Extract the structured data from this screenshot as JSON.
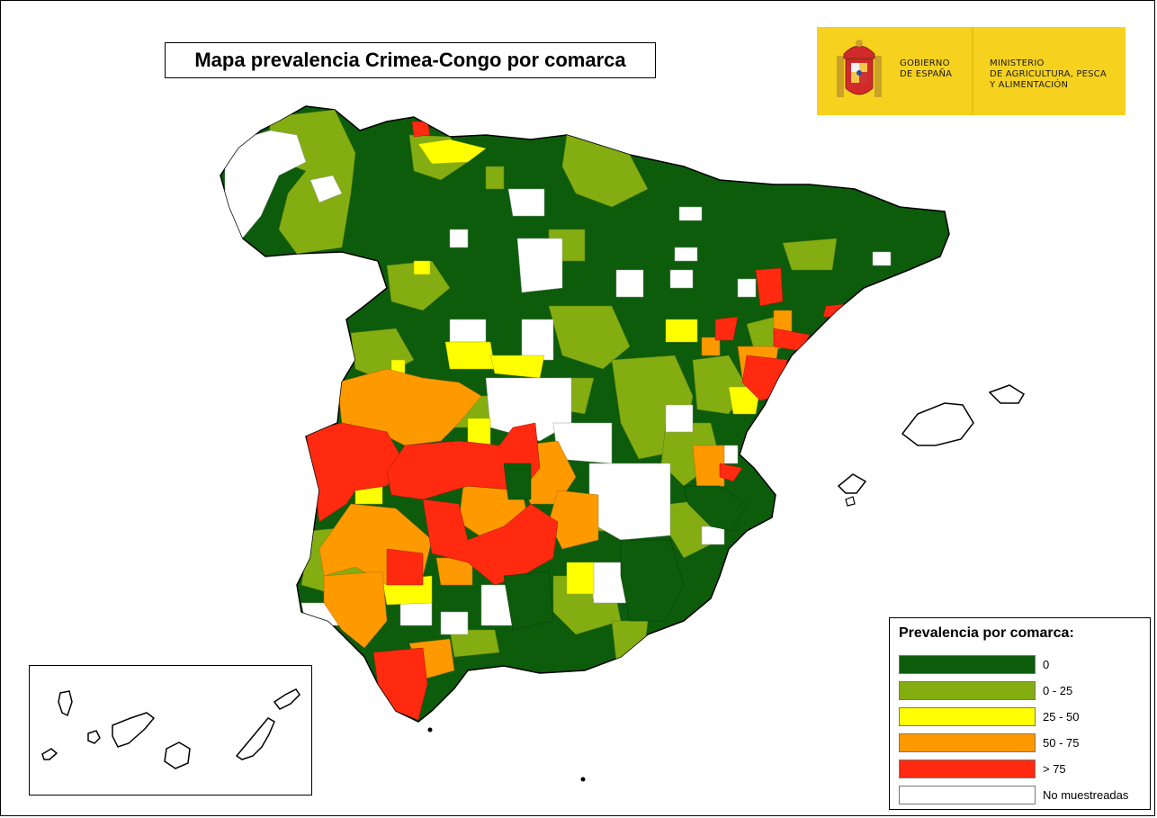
{
  "map": {
    "title": "Mapa prevalencia Crimea-Congo por comarca"
  },
  "government": {
    "line1": "GOBIERNO",
    "line2": "DE ESPAÑA",
    "ministry_line1": "MINISTERIO",
    "ministry_line2": "DE AGRICULTURA, PESCA",
    "ministry_line3": "Y ALIMENTACIÓN",
    "banner_color": "#f6d21f"
  },
  "legend": {
    "title": "Prevalencia por comarca:",
    "items": [
      {
        "label": "0",
        "color": "#0c5c0c"
      },
      {
        "label": "0 - 25",
        "color": "#84ad12"
      },
      {
        "label": "25 - 50",
        "color": "#ffff00"
      },
      {
        "label": "50 - 75",
        "color": "#ff9900"
      },
      {
        "label": "> 75",
        "color": "#ff2a10"
      },
      {
        "label": "No muestreadas",
        "color": "#ffffff"
      }
    ]
  }
}
